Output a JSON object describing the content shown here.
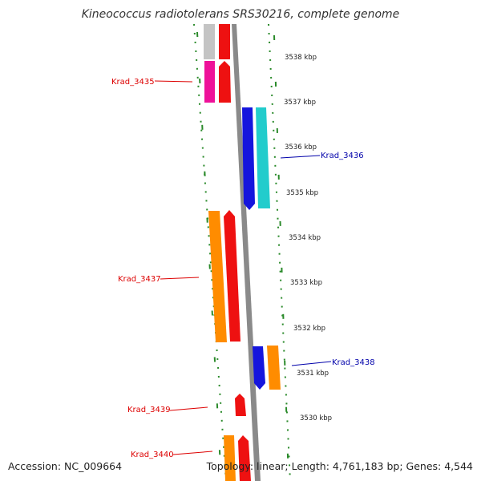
{
  "title": "Kineococcus radiotolerans SRS30216, complete genome",
  "footer": {
    "accession": "Accession: NC_009664",
    "info": "Topology: linear; Length: 4,761,183 bp; Genes: 4,544"
  },
  "ticks": [
    "3538 kbp",
    "3537 kbp",
    "3536 kbp",
    "3535 kbp",
    "3534 kbp",
    "3533 kbp",
    "3532 kbp",
    "3531 kbp",
    "3530 kbp"
  ],
  "gene_labels": [
    {
      "text": "Krad_3435",
      "color": "#dd0000"
    },
    {
      "text": "Krad_3436",
      "color": "#0000aa"
    },
    {
      "text": "Krad_3437",
      "color": "#dd0000"
    },
    {
      "text": "Krad_3438",
      "color": "#0000aa"
    },
    {
      "text": "Krad_3439",
      "color": "#dd0000"
    },
    {
      "text": "Krad_3440",
      "color": "#dd0000"
    }
  ],
  "colors": {
    "backbone": "#8a8a8a",
    "dots": "#2a8a2a",
    "red": "#ee1111",
    "orange": "#ff8c00",
    "blue": "#1515dd",
    "cyan": "#22cccc",
    "magenta": "#ee1199",
    "gray": "#c4c4c4"
  }
}
